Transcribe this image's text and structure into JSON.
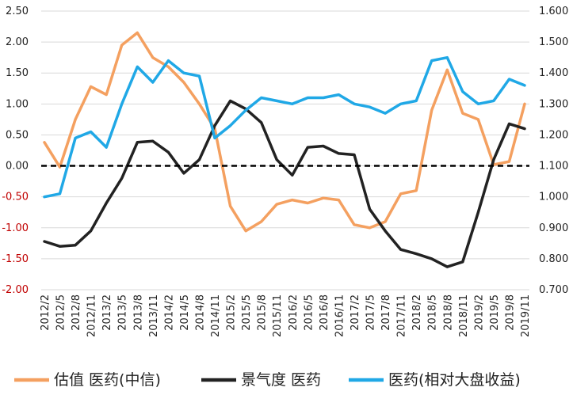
{
  "chart_data": {
    "type": "line",
    "title": "",
    "xlabel": "",
    "ylabel": "",
    "x": [
      "2012/2",
      "2012/5",
      "2012/8",
      "2012/11",
      "2013/2",
      "2013/5",
      "2013/8",
      "2013/11",
      "2014/2",
      "2014/5",
      "2014/8",
      "2014/11",
      "2015/2",
      "2015/5",
      "2015/8",
      "2015/11",
      "2016/2",
      "2016/5",
      "2016/8",
      "2016/11",
      "2017/2",
      "2017/5",
      "2017/8",
      "2017/11",
      "2018/2",
      "2018/5",
      "2018/8",
      "2018/11",
      "2019/2",
      "2019/5",
      "2019/8",
      "2019/11"
    ],
    "x_tick_labels": [
      "2012/2",
      "2012/5",
      "2012/8",
      "2012/11",
      "2013/2",
      "2013/5",
      "2013/8",
      "2013/11",
      "2014/2",
      "2014/5",
      "2014/8",
      "2014/11",
      "2015/2",
      "2015/5",
      "2015/8",
      "2015/11",
      "2016/2",
      "2016/5",
      "2016/8",
      "2016/11",
      "2017/2",
      "2017/5",
      "2017/8",
      "2017/11",
      "2018/2",
      "2018/5",
      "2018/8",
      "2018/11",
      "2019/2",
      "2019/5",
      "2019/8",
      "2019/11"
    ],
    "y_left_ticks": [
      "2.50",
      "2.00",
      "1.50",
      "1.00",
      "0.50",
      "0.00",
      "-0.50",
      "-1.00",
      "-1.50",
      "-2.00"
    ],
    "y_right_ticks": [
      "1.600",
      "1.500",
      "1.400",
      "1.300",
      "1.200",
      "1.100",
      "1.000",
      "0.900",
      "0.800",
      "0.700"
    ],
    "ylim_left": [
      -2.0,
      2.5
    ],
    "ylim_right": [
      0.7,
      1.6
    ],
    "reference_line": {
      "y": 0.0,
      "axis": "left",
      "style": "dashed",
      "color": "#000000"
    },
    "series": [
      {
        "name": "估值 医药(中信)",
        "axis": "left",
        "color": "#f4a060",
        "values": [
          0.38,
          -0.02,
          0.75,
          1.28,
          1.15,
          1.95,
          2.15,
          1.75,
          1.6,
          1.35,
          1.0,
          0.6,
          -0.65,
          -1.05,
          -0.9,
          -0.62,
          -0.55,
          -0.6,
          -0.52,
          -0.55,
          -0.95,
          -1.0,
          -0.9,
          -0.45,
          -0.4,
          0.9,
          1.55,
          0.85,
          0.75,
          0.02,
          0.07,
          1.0
        ]
      },
      {
        "name": "景气度 医药",
        "axis": "left",
        "color": "#222222",
        "values": [
          -1.22,
          -1.3,
          -1.28,
          -1.05,
          -0.6,
          -0.2,
          0.38,
          0.4,
          0.22,
          -0.12,
          0.1,
          0.65,
          1.05,
          0.92,
          0.7,
          0.1,
          -0.15,
          0.3,
          0.32,
          0.2,
          0.18,
          -0.7,
          -1.05,
          -1.35,
          -1.42,
          -1.5,
          -1.63,
          -1.55,
          -0.75,
          0.1,
          0.68,
          0.6
        ]
      },
      {
        "name": "医药(相对大盘收益)",
        "axis": "right",
        "color": "#20a8e6",
        "values": [
          1.0,
          1.01,
          1.19,
          1.21,
          1.16,
          1.3,
          1.42,
          1.37,
          1.44,
          1.4,
          1.39,
          1.19,
          1.23,
          1.28,
          1.32,
          1.31,
          1.3,
          1.32,
          1.32,
          1.33,
          1.3,
          1.29,
          1.27,
          1.3,
          1.31,
          1.44,
          1.45,
          1.34,
          1.3,
          1.31,
          1.38,
          1.36
        ]
      }
    ],
    "legend": {
      "placement": "bottom",
      "entries": [
        "估值 医药(中信)",
        "景气度 医药",
        "医药(相对大盘收益)"
      ]
    },
    "grid": true
  }
}
